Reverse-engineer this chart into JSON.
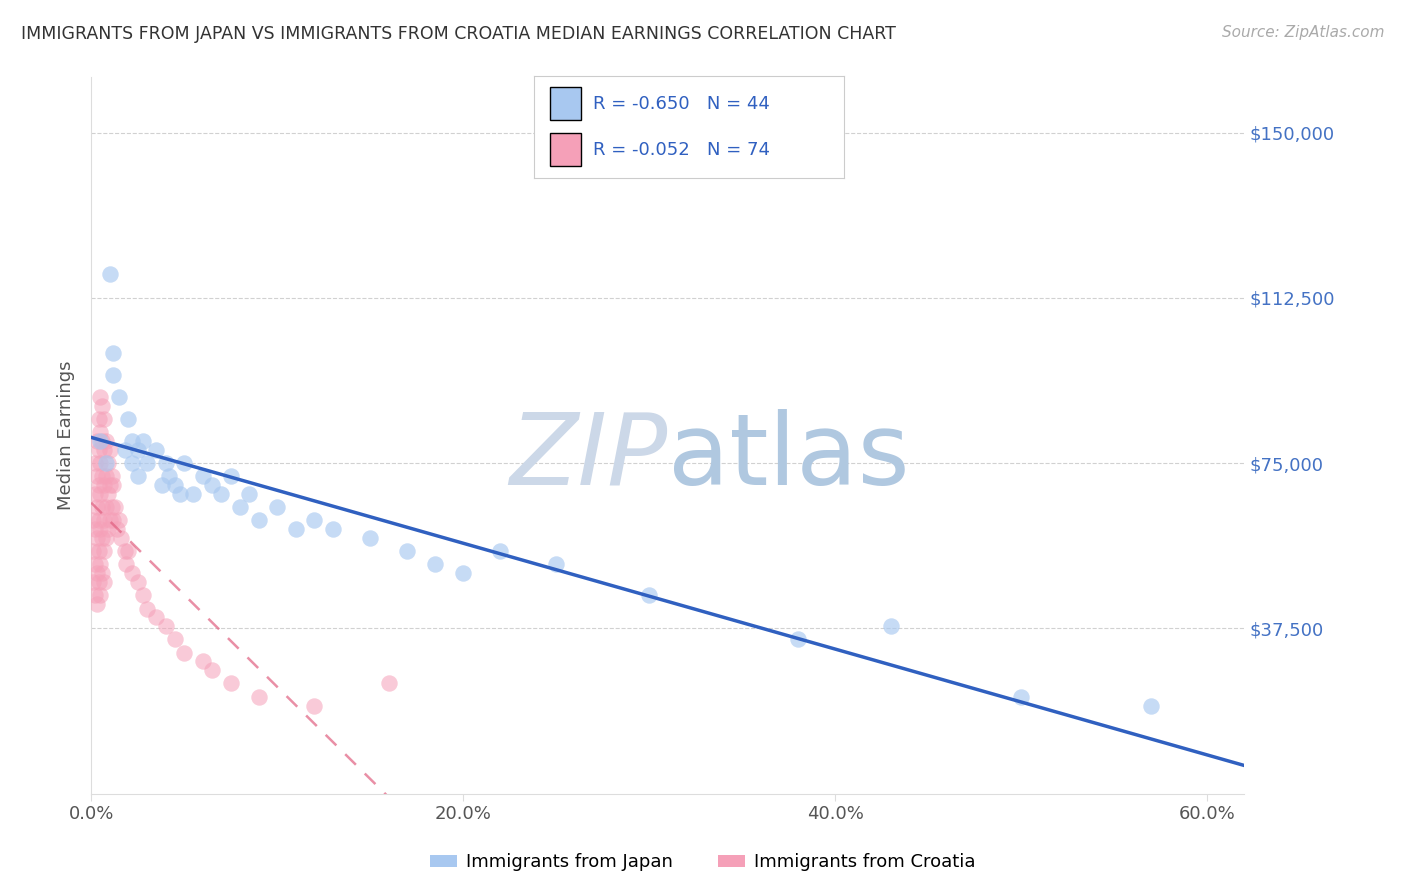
{
  "title": "IMMIGRANTS FROM JAPAN VS IMMIGRANTS FROM CROATIA MEDIAN EARNINGS CORRELATION CHART",
  "source": "Source: ZipAtlas.com",
  "ylabel": "Median Earnings",
  "xlim": [
    0.0,
    0.62
  ],
  "ylim": [
    0,
    162500
  ],
  "xtick_labels": [
    "0.0%",
    "20.0%",
    "40.0%",
    "60.0%"
  ],
  "xtick_positions": [
    0.0,
    0.2,
    0.4,
    0.6
  ],
  "ytick_labels": [
    "$37,500",
    "$75,000",
    "$112,500",
    "$150,000"
  ],
  "ytick_values": [
    37500,
    75000,
    112500,
    150000
  ],
  "legend_label_japan": "Immigrants from Japan",
  "legend_label_croatia": "Immigrants from Croatia",
  "R_japan": "-0.650",
  "N_japan": "44",
  "R_croatia": "-0.052",
  "N_croatia": "74",
  "color_japan": "#a8c8f0",
  "color_croatia": "#f5a0b8",
  "line_color_japan": "#3060c0",
  "line_color_croatia": "#e06080",
  "watermark_zip_color": "#ccd8e8",
  "watermark_atlas_color": "#b0c8e0",
  "japan_x": [
    0.005,
    0.008,
    0.01,
    0.012,
    0.012,
    0.015,
    0.018,
    0.02,
    0.022,
    0.022,
    0.025,
    0.025,
    0.028,
    0.03,
    0.035,
    0.038,
    0.04,
    0.042,
    0.045,
    0.048,
    0.05,
    0.055,
    0.06,
    0.065,
    0.07,
    0.075,
    0.08,
    0.085,
    0.09,
    0.1,
    0.11,
    0.12,
    0.13,
    0.15,
    0.17,
    0.185,
    0.2,
    0.22,
    0.25,
    0.3,
    0.38,
    0.43,
    0.5,
    0.57
  ],
  "japan_y": [
    80000,
    75000,
    118000,
    95000,
    100000,
    90000,
    78000,
    85000,
    80000,
    75000,
    78000,
    72000,
    80000,
    75000,
    78000,
    70000,
    75000,
    72000,
    70000,
    68000,
    75000,
    68000,
    72000,
    70000,
    68000,
    72000,
    65000,
    68000,
    62000,
    65000,
    60000,
    62000,
    60000,
    58000,
    55000,
    52000,
    50000,
    55000,
    52000,
    45000,
    35000,
    38000,
    22000,
    20000
  ],
  "croatia_x": [
    0.001,
    0.001,
    0.001,
    0.002,
    0.002,
    0.002,
    0.002,
    0.002,
    0.003,
    0.003,
    0.003,
    0.003,
    0.003,
    0.003,
    0.004,
    0.004,
    0.004,
    0.004,
    0.004,
    0.004,
    0.005,
    0.005,
    0.005,
    0.005,
    0.005,
    0.005,
    0.005,
    0.006,
    0.006,
    0.006,
    0.006,
    0.006,
    0.006,
    0.007,
    0.007,
    0.007,
    0.007,
    0.007,
    0.007,
    0.008,
    0.008,
    0.008,
    0.008,
    0.009,
    0.009,
    0.009,
    0.01,
    0.01,
    0.01,
    0.011,
    0.011,
    0.012,
    0.012,
    0.013,
    0.014,
    0.015,
    0.016,
    0.018,
    0.019,
    0.02,
    0.022,
    0.025,
    0.028,
    0.03,
    0.035,
    0.04,
    0.045,
    0.05,
    0.06,
    0.065,
    0.075,
    0.09,
    0.12,
    0.16
  ],
  "croatia_y": [
    62000,
    55000,
    48000,
    75000,
    68000,
    60000,
    52000,
    45000,
    80000,
    72000,
    65000,
    58000,
    50000,
    43000,
    85000,
    78000,
    70000,
    62000,
    55000,
    48000,
    90000,
    82000,
    75000,
    68000,
    60000,
    52000,
    45000,
    88000,
    80000,
    72000,
    65000,
    58000,
    50000,
    85000,
    78000,
    70000,
    62000,
    55000,
    48000,
    80000,
    72000,
    65000,
    58000,
    75000,
    68000,
    60000,
    78000,
    70000,
    62000,
    72000,
    65000,
    70000,
    62000,
    65000,
    60000,
    62000,
    58000,
    55000,
    52000,
    55000,
    50000,
    48000,
    45000,
    42000,
    40000,
    38000,
    35000,
    32000,
    30000,
    28000,
    25000,
    22000,
    20000,
    25000
  ]
}
